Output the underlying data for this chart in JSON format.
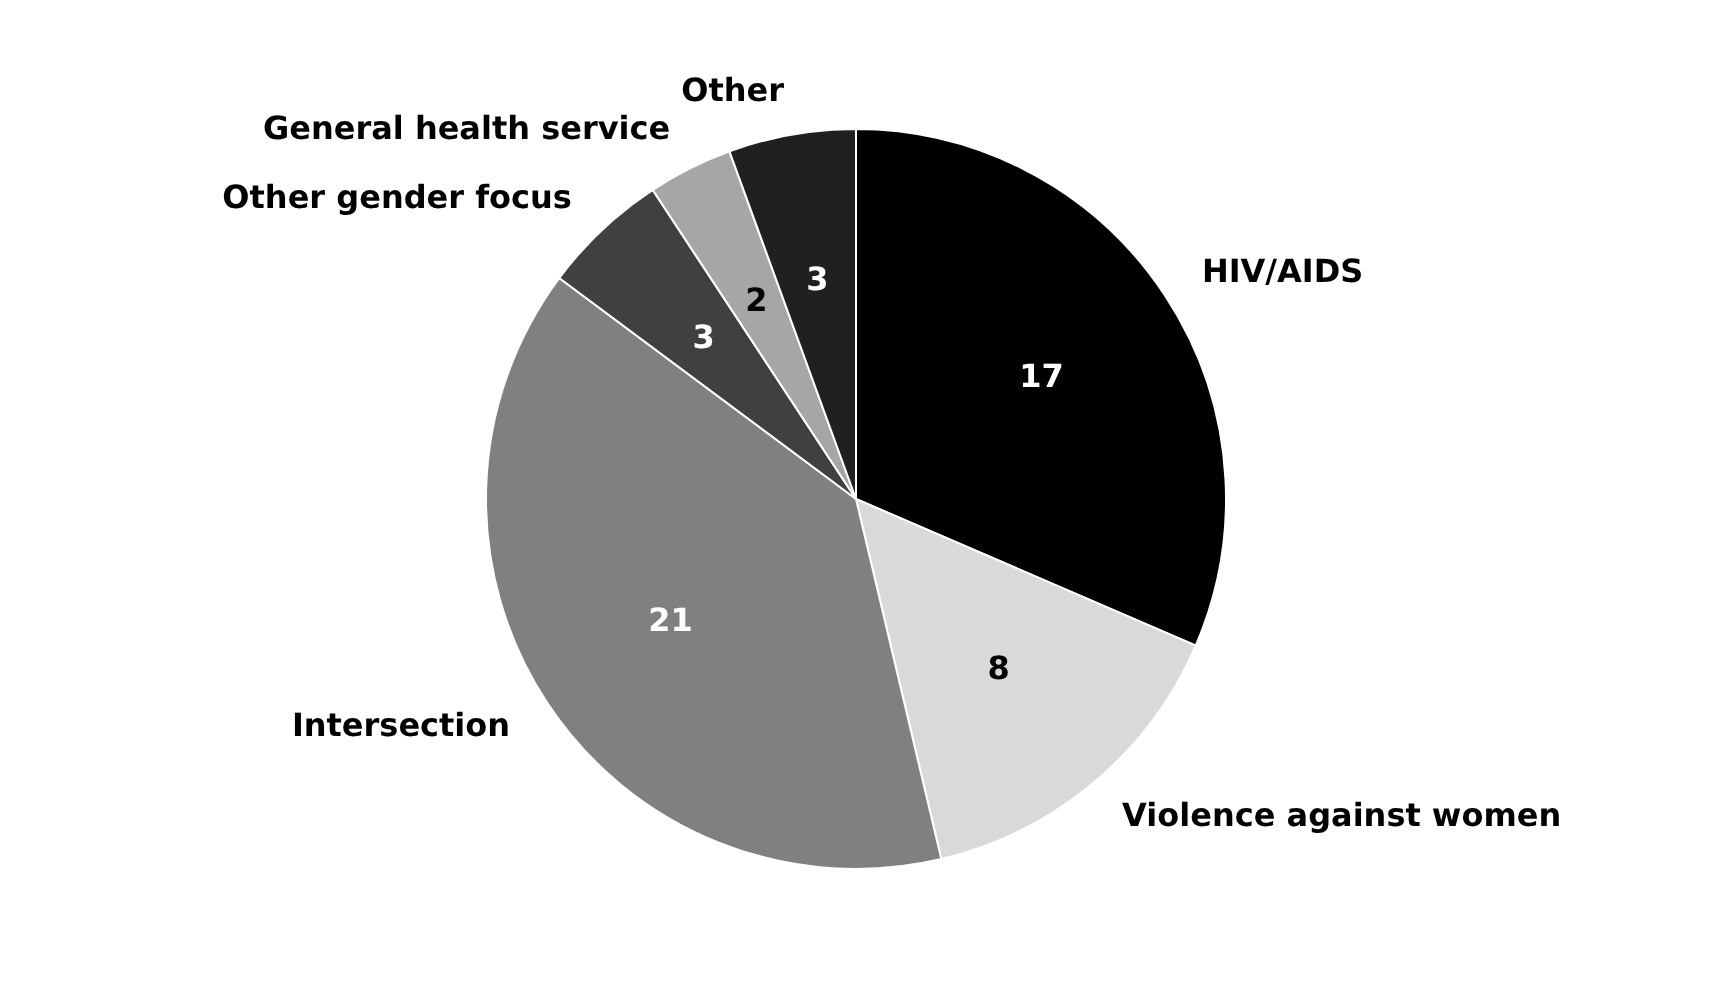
{
  "chart_data": {
    "type": "pie",
    "categories": [
      "HIV/AIDS",
      "Violence against women",
      "Intersection",
      "Other gender focus",
      "General health service",
      "Other"
    ],
    "values": [
      17,
      8,
      21,
      3,
      2,
      3
    ],
    "colors": [
      "#000000",
      "#d9d9d9",
      "#808080",
      "#404040",
      "#a6a6a6",
      "#202020"
    ],
    "data_labels": true
  }
}
